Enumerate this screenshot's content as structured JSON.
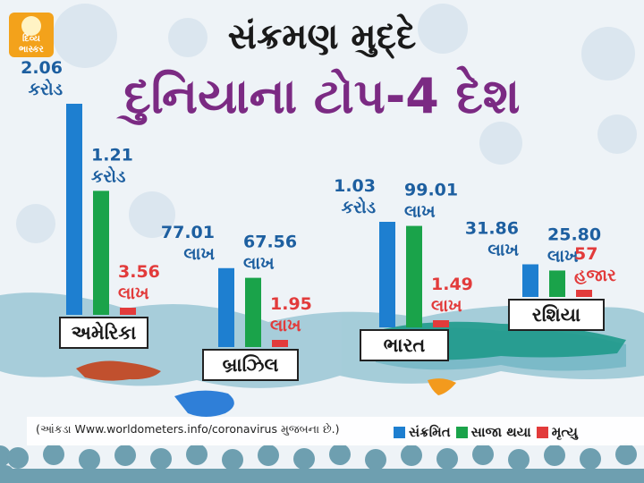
{
  "brand": {
    "line1": "દિવ્ય",
    "line2": "ભાસ્કર"
  },
  "title": "સંક્રમણ મુદ્દે",
  "subtitle": "દુનિયાના ટોપ-4 દેશ",
  "note": "(આંકડા Www.worldometers.info/coronavirus મુજબના છે.)",
  "colors": {
    "infected": "#1e7fd0",
    "recovered": "#1aa34a",
    "deaths": "#e23b3b",
    "label": "#1d5fa0",
    "title2": "#7b2a83"
  },
  "legend": [
    {
      "label": "સંક્રમિત",
      "color": "#1e7fd0"
    },
    {
      "label": "સાજા થયા",
      "color": "#1aa34a"
    },
    {
      "label": "મૃત્યુ",
      "color": "#e23b3b"
    }
  ],
  "chart_data": {
    "type": "bar",
    "categories": [
      "અમેરિકા",
      "બ્રાઝિલ",
      "ભારત",
      "રશિયા"
    ],
    "series": [
      {
        "name": "સંક્રમિત",
        "values": [
          20600000,
          7701000,
          10300000,
          3186000
        ],
        "labels": [
          [
            "2.06",
            "કરોડ"
          ],
          [
            "77.01",
            "લાખ"
          ],
          [
            "1.03",
            "કરોડ"
          ],
          [
            "31.86",
            "લાખ"
          ]
        ]
      },
      {
        "name": "સાજા થયા",
        "values": [
          12100000,
          6756000,
          9901000,
          2580000
        ],
        "labels": [
          [
            "1.21",
            "કરોડ"
          ],
          [
            "67.56",
            "લાખ"
          ],
          [
            "99.01",
            "લાખ"
          ],
          [
            "25.80",
            "લાખ"
          ]
        ]
      },
      {
        "name": "મૃત્યુ",
        "values": [
          356000,
          195000,
          149000,
          57000
        ],
        "labels": [
          [
            "3.56",
            "લાખ"
          ],
          [
            "1.95",
            "લાખ"
          ],
          [
            "1.49",
            "લાખ"
          ],
          [
            "57",
            "હજાર"
          ]
        ]
      }
    ]
  }
}
